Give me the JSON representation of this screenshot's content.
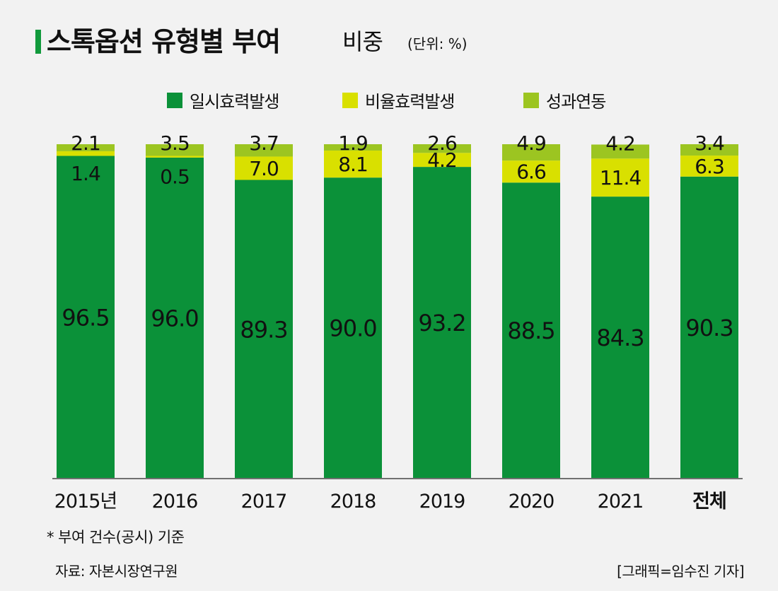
{
  "header": {
    "title": "스톡옵션 유형별 부여",
    "subtitle": "비중",
    "unit": "(단위: %)"
  },
  "legend": [
    {
      "label": "일시효력발생",
      "color": "#0b9139"
    },
    {
      "label": "비율효력발생",
      "color": "#d9e000"
    },
    {
      "label": "성과연동",
      "color": "#9cc521"
    }
  ],
  "chart_data": {
    "type": "bar",
    "stacked": true,
    "categories": [
      "2015년",
      "2016",
      "2017",
      "2018",
      "2019",
      "2020",
      "2021",
      "전체"
    ],
    "series": [
      {
        "name": "일시효력발생",
        "color": "#0b9139",
        "values": [
          96.5,
          96.0,
          89.3,
          90.0,
          93.2,
          88.5,
          84.3,
          90.3
        ]
      },
      {
        "name": "비율효력발생",
        "color": "#d9e000",
        "values": [
          1.4,
          0.5,
          7.0,
          8.1,
          4.2,
          6.6,
          11.4,
          6.3
        ]
      },
      {
        "name": "성과연동",
        "color": "#9cc521",
        "values": [
          2.1,
          3.5,
          3.7,
          1.9,
          2.6,
          4.9,
          4.2,
          3.4
        ]
      }
    ],
    "ylim": [
      0,
      100
    ],
    "grid": false,
    "legend_position": "top-center"
  },
  "footer": {
    "note": "*  부여 건수(공시) 기준",
    "source": "자료: 자본시장연구원",
    "credit": "[그래픽=임수진 기자]"
  }
}
